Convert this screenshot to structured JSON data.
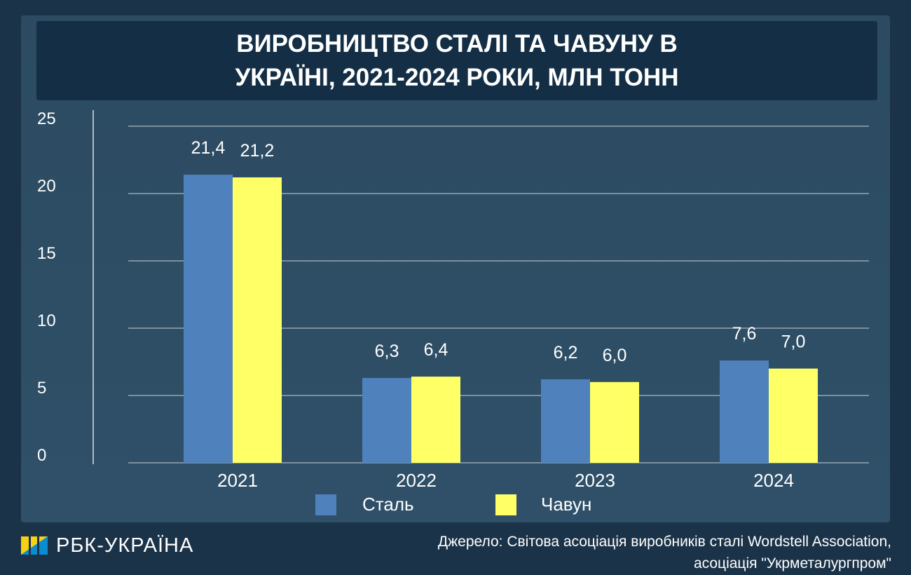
{
  "title": "ВИРОБНИЦТВО СТАЛІ ТА ЧАВУНУ В УКРАЇНІ, 2021-2024 РОКИ, МЛН ТОНН",
  "chart_data": {
    "type": "bar",
    "title": "ВИРОБНИЦТВО СТАЛІ ТА ЧАВУНУ В УКРАЇНІ, 2021-2024 РОКИ, МЛН ТОНН",
    "categories": [
      "2021",
      "2022",
      "2023",
      "2024"
    ],
    "series": [
      {
        "name": "Сталь",
        "values": [
          21.4,
          6.3,
          6.2,
          7.6
        ],
        "labels": [
          "21,4",
          "6,3",
          "6,2",
          "7,6"
        ],
        "color": "#4f81bd"
      },
      {
        "name": "Чавун",
        "values": [
          21.2,
          6.4,
          6.0,
          7.0
        ],
        "labels": [
          "21,2",
          "6,4",
          "6,0",
          "7,0"
        ],
        "color": "#ffff66"
      }
    ],
    "ylim": [
      0,
      25
    ],
    "yticks": [
      "0",
      "5",
      "10",
      "15",
      "20",
      "25"
    ],
    "grid": true,
    "legend": "bottom"
  },
  "logo": "РБК-УКРАЇНА",
  "source": [
    "Джерело: Світова асоціація виробників сталі Wordstell Association,",
    "асоціація \"Укрметалургпром\""
  ]
}
